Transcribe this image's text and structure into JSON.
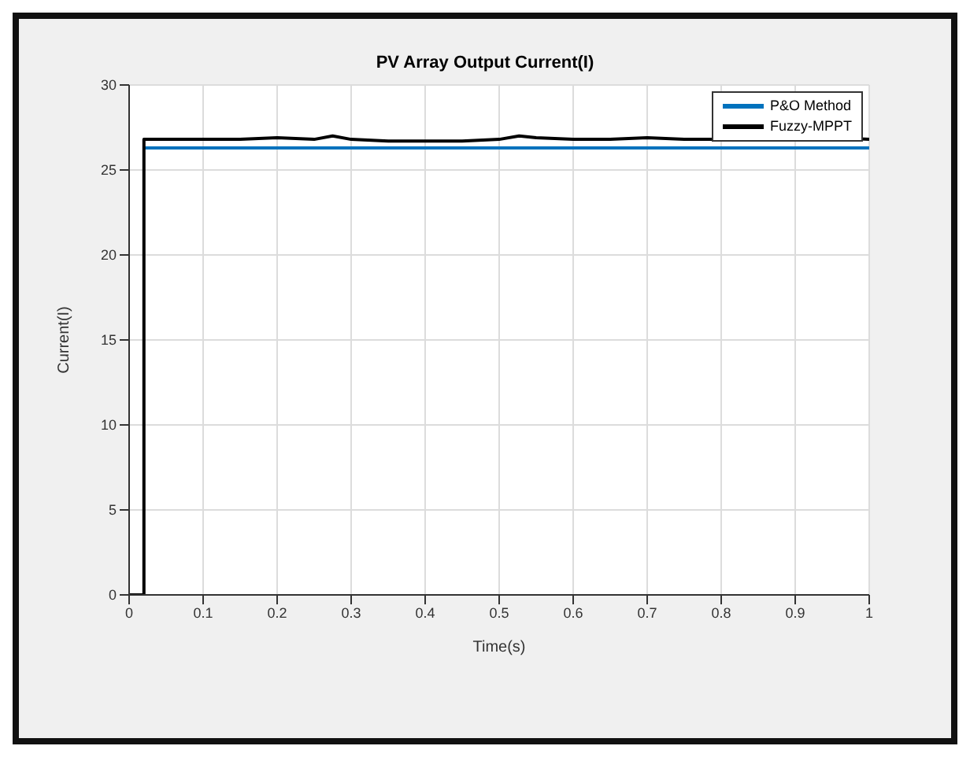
{
  "chart_data": {
    "type": "line",
    "title": "PV Array Output Current(I)",
    "xlabel": "Time(s)",
    "ylabel": "Current(I)",
    "series": [
      {
        "name": "P&O Method",
        "color": "#0072bd",
        "x": [
          0.02,
          1
        ],
        "values": [
          26.3,
          26.3
        ]
      },
      {
        "name": "Fuzzy-MPPT",
        "color": "#000000",
        "x": [
          0,
          0.02,
          0.02,
          0.05,
          0.1,
          0.15,
          0.2,
          0.25,
          0.275,
          0.3,
          0.35,
          0.4,
          0.45,
          0.5,
          0.527,
          0.55,
          0.6,
          0.65,
          0.7,
          0.75,
          0.8,
          0.85,
          0.9,
          0.95,
          1
        ],
        "values": [
          0,
          0,
          26.8,
          26.8,
          26.8,
          26.8,
          26.9,
          26.8,
          27.0,
          26.8,
          26.7,
          26.7,
          26.7,
          26.8,
          27.0,
          26.9,
          26.8,
          26.8,
          26.9,
          26.8,
          26.8,
          26.8,
          26.8,
          26.9,
          26.8
        ]
      }
    ],
    "xlim": [
      0,
      1
    ],
    "xticks": [
      0,
      0.1,
      0.2,
      0.3,
      0.4,
      0.5,
      0.6,
      0.7,
      0.8,
      0.9,
      1
    ],
    "ylim": [
      0,
      30
    ],
    "yticks": [
      0,
      5,
      10,
      15,
      20,
      25,
      30
    ],
    "grid": true,
    "legend": "top right",
    "marker": "none",
    "line_style": "solid"
  }
}
